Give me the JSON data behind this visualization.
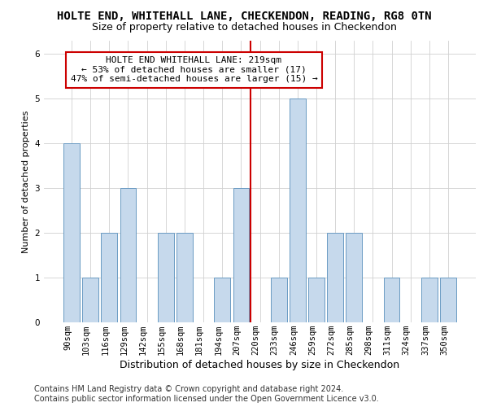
{
  "title": "HOLTE END, WHITEHALL LANE, CHECKENDON, READING, RG8 0TN",
  "subtitle": "Size of property relative to detached houses in Checkendon",
  "xlabel": "Distribution of detached houses by size in Checkendon",
  "ylabel": "Number of detached properties",
  "categories": [
    "90sqm",
    "103sqm",
    "116sqm",
    "129sqm",
    "142sqm",
    "155sqm",
    "168sqm",
    "181sqm",
    "194sqm",
    "207sqm",
    "220sqm",
    "233sqm",
    "246sqm",
    "259sqm",
    "272sqm",
    "285sqm",
    "298sqm",
    "311sqm",
    "324sqm",
    "337sqm",
    "350sqm"
  ],
  "values": [
    4,
    1,
    2,
    3,
    0,
    2,
    2,
    0,
    1,
    3,
    0,
    1,
    5,
    1,
    2,
    2,
    0,
    1,
    0,
    1,
    1
  ],
  "bar_color": "#c6d9ec",
  "bar_edgecolor": "#6a9bc3",
  "vline_x_idx": 10,
  "vline_color": "#cc0000",
  "annotation_text": "HOLTE END WHITEHALL LANE: 219sqm\n← 53% of detached houses are smaller (17)\n47% of semi-detached houses are larger (15) →",
  "annotation_box_edgecolor": "#cc0000",
  "annotation_box_facecolor": "#ffffff",
  "ylim": [
    0,
    6.3
  ],
  "yticks": [
    0,
    1,
    2,
    3,
    4,
    5,
    6
  ],
  "footer_line1": "Contains HM Land Registry data © Crown copyright and database right 2024.",
  "footer_line2": "Contains public sector information licensed under the Open Government Licence v3.0.",
  "bg_color": "#ffffff",
  "grid_color": "#d0d0d0",
  "title_fontsize": 10,
  "subtitle_fontsize": 9,
  "xlabel_fontsize": 9,
  "ylabel_fontsize": 8,
  "tick_fontsize": 7.5,
  "footer_fontsize": 7,
  "annotation_fontsize": 8
}
